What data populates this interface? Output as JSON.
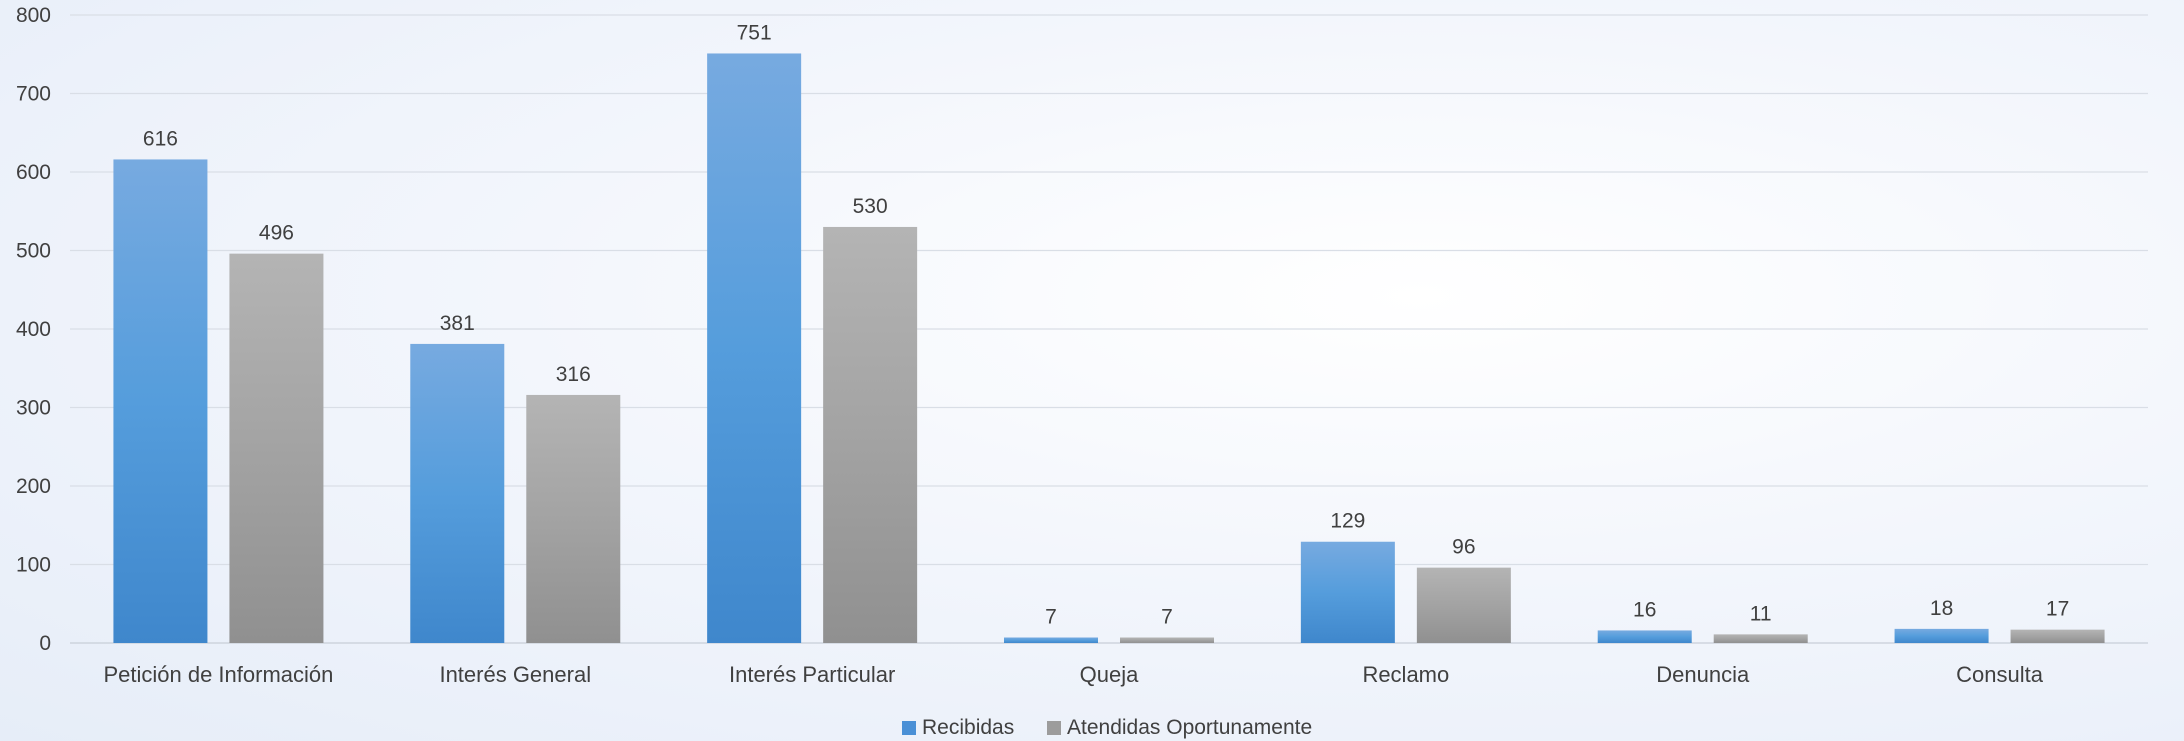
{
  "chart_data": {
    "type": "bar",
    "categories": [
      "Petición de Información",
      "Interés General",
      "Interés Particular",
      "Queja",
      "Reclamo",
      "Denuncia",
      "Consulta"
    ],
    "series": [
      {
        "name": "Recibidas",
        "values": [
          616,
          381,
          751,
          7,
          129,
          16,
          18
        ],
        "color": "#4a90d6"
      },
      {
        "name": "Atendidas Oportunamente",
        "values": [
          496,
          316,
          530,
          7,
          96,
          11,
          17
        ],
        "color": "#9c9c9c"
      }
    ],
    "yticks": [
      0,
      100,
      200,
      300,
      400,
      500,
      600,
      700,
      800
    ],
    "ylim": [
      0,
      800
    ],
    "grid": true,
    "data_labels": true,
    "legend_position": "bottom"
  }
}
